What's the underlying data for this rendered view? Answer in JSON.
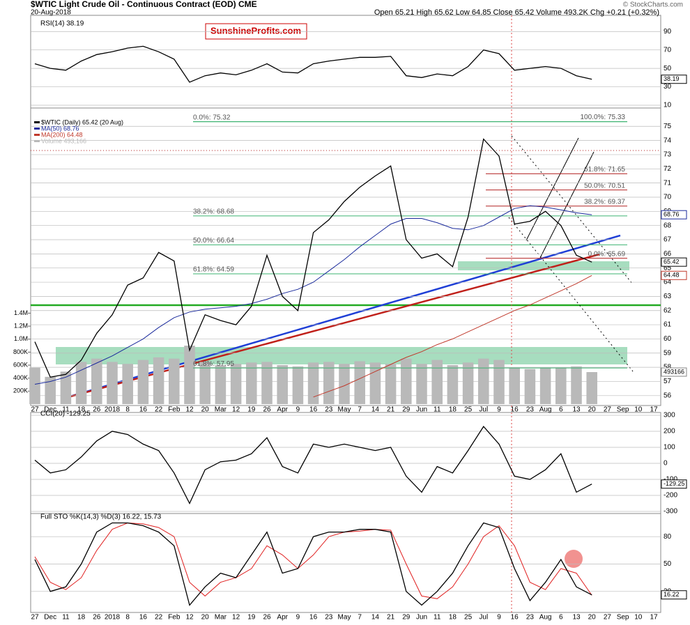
{
  "header": {
    "symbol_title": "$WTIC Light Crude Oil - Continuous Contract (EOD) CME",
    "date": "20-Aug-2018",
    "quote": "Open 65.21 High 65.62 Low 64.85 Close 65.42 Volume 493.2K Chg +0.21 (+0.32%)",
    "source": "© StockCharts.com",
    "watermark": "SunshineProfits.com"
  },
  "chart_data": [
    {
      "type": "line",
      "title": "RSI(14) 38.19",
      "ylim": [
        10,
        97
      ],
      "yticks": [
        10,
        30,
        50,
        70,
        90
      ],
      "color": "#000000",
      "tag": "38.19",
      "values": [
        55,
        50,
        48,
        58,
        65,
        68,
        72,
        74,
        68,
        60,
        35,
        42,
        45,
        43,
        48,
        55,
        46,
        45,
        55,
        58,
        60,
        62,
        62,
        63,
        42,
        40,
        44,
        42,
        52,
        70,
        66,
        48,
        50,
        52,
        50,
        42,
        38.19,
        null,
        null,
        null,
        null
      ]
    },
    {
      "type": "line",
      "ylim": [
        55.4,
        75.8
      ],
      "yticks": [
        56,
        57,
        58,
        59,
        60,
        61,
        62,
        63,
        64,
        65,
        66,
        67,
        68,
        69,
        70,
        71,
        72,
        73,
        74,
        75
      ],
      "y2lim": [
        0,
        4450000
      ],
      "y2ticks": [
        {
          "value": 200000,
          "label": "200K"
        },
        {
          "value": 400000,
          "label": "400K"
        },
        {
          "value": 600000,
          "label": "600K"
        },
        {
          "value": 800000,
          "label": "800K"
        },
        {
          "value": 1000000,
          "label": "1.0M"
        },
        {
          "value": 1200000,
          "label": "1.2M"
        },
        {
          "value": 1400000,
          "label": "1.4M"
        }
      ],
      "categories": [
        "27",
        "Dec",
        "11",
        "18",
        "26",
        "2018",
        "8",
        "16",
        "22",
        "Feb",
        "12",
        "20",
        "Mar",
        "12",
        "19",
        "26",
        "Apr",
        "9",
        "16",
        "23",
        "May",
        "7",
        "14",
        "21",
        "29",
        "Jun",
        "11",
        "18",
        "25",
        "Jul",
        "9",
        "16",
        "23",
        "Aug",
        "6",
        "13",
        "20",
        "27",
        "Sep",
        "10",
        "17"
      ],
      "series": [
        {
          "name": "Volume 493,166",
          "type": "bar",
          "axis": "y2",
          "color": "#b9b9b9",
          "tag": "493166",
          "values": [
            560000,
            420000,
            500000,
            650000,
            700000,
            650000,
            620000,
            680000,
            720000,
            700000,
            900000,
            650000,
            600000,
            620000,
            640000,
            650000,
            600000,
            580000,
            640000,
            650000,
            620000,
            660000,
            640000,
            620000,
            700000,
            620000,
            680000,
            600000,
            640000,
            700000,
            680000,
            560000,
            540000,
            560000,
            560000,
            580000,
            493166,
            null,
            null,
            null,
            null
          ]
        },
        {
          "name": "MA(200) 64.48",
          "color": "#c0392b",
          "tag": "64.48",
          "values": [
            null,
            null,
            null,
            null,
            null,
            null,
            null,
            null,
            null,
            null,
            null,
            null,
            null,
            null,
            null,
            null,
            null,
            null,
            55.9,
            56.3,
            56.7,
            57.2,
            57.7,
            58.2,
            58.7,
            59.1,
            59.6,
            60.0,
            60.5,
            61.0,
            61.5,
            62.0,
            62.4,
            62.9,
            63.4,
            63.9,
            64.48,
            null,
            null,
            null,
            null
          ]
        },
        {
          "name": "MA(50) 68.76",
          "color": "#1a2a9c",
          "tag": "68.76",
          "values": [
            56.8,
            57.0,
            57.3,
            57.8,
            58.3,
            58.8,
            59.4,
            60.0,
            60.8,
            61.5,
            61.9,
            62.1,
            62.2,
            62.3,
            62.5,
            62.8,
            63.2,
            63.5,
            64.0,
            64.8,
            65.6,
            66.5,
            67.3,
            68.1,
            68.5,
            68.5,
            68.2,
            67.8,
            67.7,
            68.0,
            68.6,
            69.2,
            69.4,
            69.3,
            69.1,
            68.9,
            68.76,
            null,
            null,
            null,
            null
          ]
        },
        {
          "name": "$WTIC (Daily) 65.42 (20 Aug)",
          "color": "#000000",
          "tag": "65.42",
          "values": [
            59.8,
            57.3,
            57.5,
            58.5,
            60.4,
            61.7,
            63.8,
            64.3,
            66.1,
            65.5,
            59.2,
            61.7,
            61.3,
            61.0,
            62.3,
            65.9,
            63.0,
            62.0,
            67.5,
            68.4,
            69.7,
            70.7,
            71.5,
            72.2,
            67.0,
            65.7,
            66.0,
            65.1,
            68.6,
            74.1,
            72.9,
            68.1,
            68.3,
            69.0,
            68.0,
            65.9,
            65.42,
            null,
            null,
            null,
            null
          ]
        }
      ],
      "annotations": [
        {
          "label": "0.0%: 75.32",
          "value": 75.32,
          "color": "#3cb371",
          "align": "left"
        },
        {
          "label": "100.0%: 75.33",
          "value": 75.33,
          "color": "#3cb371",
          "align": "right"
        },
        {
          "label": "61.8%: 71.65",
          "value": 71.65,
          "color": "#b22222",
          "align": "right"
        },
        {
          "label": "50.0%: 70.51",
          "value": 70.51,
          "color": "#b22222",
          "align": "right"
        },
        {
          "label": "38.2%: 69.37",
          "value": 69.37,
          "color": "#b22222",
          "align": "right"
        },
        {
          "label": "38.2%: 68.68",
          "value": 68.68,
          "color": "#3cb371",
          "align": "left"
        },
        {
          "label": "50.0%: 66.64",
          "value": 66.64,
          "color": "#3cb371",
          "align": "left"
        },
        {
          "label": "0.0%: 65.69",
          "value": 65.69,
          "color": "#b22222",
          "align": "right"
        },
        {
          "label": "61.8%: 64.59",
          "value": 64.59,
          "color": "#3cb371",
          "align": "left"
        },
        {
          "label": "61.8%: 57.95",
          "value": 57.95,
          "color": "#3cb371",
          "align": "left"
        }
      ]
    },
    {
      "type": "line",
      "title": "CCI(20) -129.25",
      "ylim": [
        -300,
        300
      ],
      "yticks": [
        -300,
        -200,
        -100,
        0,
        100,
        200,
        300
      ],
      "color": "#000000",
      "tag": "-129.25",
      "values": [
        20,
        -60,
        -40,
        40,
        140,
        200,
        180,
        120,
        80,
        -60,
        -250,
        -40,
        10,
        20,
        60,
        160,
        -20,
        -60,
        120,
        100,
        120,
        100,
        80,
        100,
        -80,
        -180,
        -20,
        -60,
        80,
        230,
        120,
        -80,
        -100,
        -40,
        60,
        -180,
        -129.25,
        null,
        null,
        null,
        null
      ]
    },
    {
      "type": "line",
      "title": "Full STO %K(14,3) %D(3) 16.22, 15.73",
      "ylim": [
        0,
        100
      ],
      "yticks": [
        20,
        50,
        80
      ],
      "categories": [
        "27",
        "Dec",
        "11",
        "18",
        "26",
        "2018",
        "8",
        "16",
        "22",
        "Feb",
        "12",
        "20",
        "Mar",
        "12",
        "19",
        "26",
        "Apr",
        "9",
        "16",
        "23",
        "May",
        "7",
        "14",
        "21",
        "29",
        "Jun",
        "11",
        "18",
        "25",
        "Jul",
        "9",
        "16",
        "23",
        "Aug",
        "6",
        "13",
        "20",
        "27",
        "Sep",
        "10",
        "17"
      ],
      "series": [
        {
          "name": "%D(3)",
          "color": "#e02020",
          "values": [
            58,
            30,
            22,
            35,
            65,
            88,
            95,
            94,
            90,
            80,
            30,
            15,
            30,
            35,
            45,
            70,
            60,
            45,
            60,
            80,
            85,
            86,
            88,
            87,
            50,
            15,
            12,
            25,
            50,
            80,
            92,
            70,
            30,
            22,
            45,
            40,
            15.73,
            null,
            null,
            null,
            null
          ]
        },
        {
          "name": "%K(14,3)",
          "color": "#000000",
          "tag": "16.22",
          "values": [
            55,
            20,
            25,
            50,
            85,
            95,
            95,
            92,
            85,
            70,
            5,
            25,
            40,
            35,
            60,
            85,
            40,
            45,
            80,
            85,
            85,
            88,
            88,
            85,
            20,
            5,
            20,
            40,
            70,
            95,
            90,
            45,
            10,
            30,
            55,
            25,
            16.22,
            null,
            null,
            null,
            null
          ]
        }
      ]
    }
  ]
}
